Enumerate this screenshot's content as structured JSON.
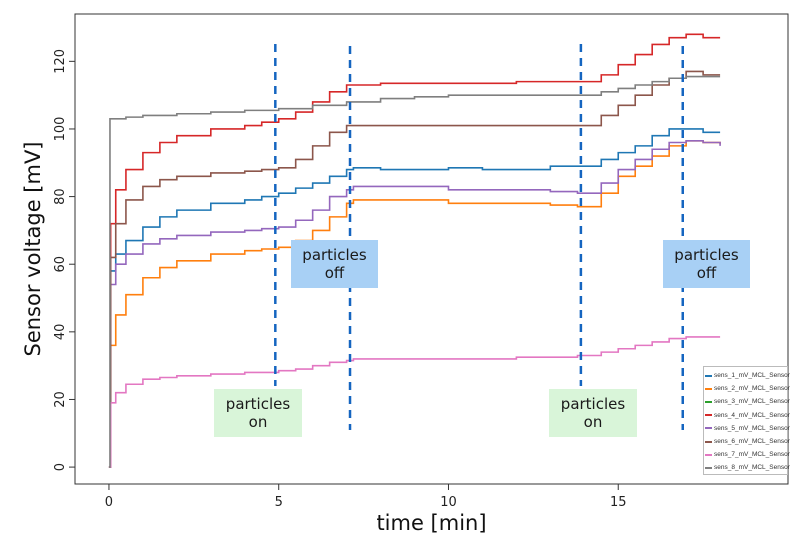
{
  "chart_data": {
    "type": "line",
    "xlabel": "time [min]",
    "ylabel": "Sensor voltage [mV]",
    "xlim": [
      -1,
      20
    ],
    "ylim": [
      -5,
      134
    ],
    "xticks": [
      0,
      5,
      10,
      15
    ],
    "yticks": [
      0,
      20,
      40,
      60,
      80,
      100,
      120
    ],
    "grid": false,
    "legend_position": "bottom-right",
    "series": [
      {
        "name": "sens_1_mV_MCL_Sensor",
        "color": "#1f77b4",
        "x": [
          0,
          0.05,
          0.2,
          0.5,
          1,
          1.5,
          2,
          3,
          4,
          4.5,
          5,
          5.5,
          6,
          6.5,
          7,
          7.2,
          8,
          9,
          10,
          11,
          12,
          13,
          13.8,
          14.5,
          15,
          15.5,
          16,
          16.5,
          17,
          17.5,
          18
        ],
        "y": [
          0,
          58,
          63,
          67,
          71,
          74,
          76,
          78,
          79,
          80,
          81,
          82.5,
          84,
          86,
          88,
          88.5,
          88,
          88,
          88.5,
          88,
          88,
          89,
          89,
          91,
          93,
          95,
          98,
          100,
          100,
          99,
          99
        ]
      },
      {
        "name": "sens_2_mV_MCL_Sensor",
        "color": "#ff7f0e",
        "x": [
          0,
          0.05,
          0.2,
          0.5,
          1,
          1.5,
          2,
          3,
          4,
          4.5,
          5,
          5.5,
          6,
          6.5,
          7,
          7.2,
          8,
          9,
          10,
          11,
          12,
          13,
          13.8,
          14.5,
          15,
          15.5,
          16,
          16.5,
          17,
          17.5,
          18
        ],
        "y": [
          0,
          36,
          45,
          51,
          56,
          59,
          61,
          63,
          64,
          64.5,
          65,
          67,
          70,
          74,
          78,
          79,
          79,
          79,
          78,
          78,
          78,
          77.5,
          77,
          81,
          86,
          89,
          92,
          95,
          96.5,
          96,
          95.5
        ]
      },
      {
        "name": "sens_3_mV_MCL_Sensor",
        "color": "#2ca02c",
        "x": [],
        "y": []
      },
      {
        "name": "sens_4_mV_MCL_Sensor",
        "color": "#d62728",
        "x": [
          0,
          0.05,
          0.2,
          0.5,
          1,
          1.5,
          2,
          3,
          4,
          4.5,
          5,
          5.5,
          6,
          6.5,
          7,
          7.2,
          8,
          9,
          10,
          11,
          12,
          13,
          13.8,
          14.5,
          15,
          15.5,
          16,
          16.5,
          17,
          17.5,
          18
        ],
        "y": [
          0,
          72,
          82,
          88,
          93,
          96,
          98,
          100,
          101,
          102,
          103,
          105,
          108,
          111,
          113,
          113,
          113.5,
          113.5,
          113.5,
          113.5,
          114,
          114,
          114,
          116,
          119,
          122,
          125,
          127,
          128,
          127,
          127
        ]
      },
      {
        "name": "sens_5_mV_MCL_Sensor",
        "color": "#9467bd",
        "x": [
          0,
          0.05,
          0.2,
          0.5,
          1,
          1.5,
          2,
          3,
          4,
          4.5,
          5,
          5.5,
          6,
          6.5,
          7,
          7.2,
          8,
          9,
          10,
          11,
          12,
          13,
          13.8,
          14.5,
          15,
          15.5,
          16,
          16.5,
          17,
          17.5,
          18
        ],
        "y": [
          0,
          54,
          60,
          63,
          66,
          67.5,
          68.5,
          69.5,
          70,
          70.5,
          71,
          73,
          76,
          80,
          82,
          83,
          83,
          83,
          82,
          82,
          82,
          81.5,
          81,
          84,
          88,
          91,
          94,
          96,
          96.5,
          96,
          95
        ]
      },
      {
        "name": "sens_6_mV_MCL_Sensor",
        "color": "#8c564b",
        "x": [
          0,
          0.05,
          0.2,
          0.5,
          1,
          1.5,
          2,
          3,
          4,
          4.5,
          5,
          5.5,
          6,
          6.5,
          7,
          7.2,
          8,
          9,
          10,
          11,
          12,
          13,
          13.8,
          14.5,
          15,
          15.5,
          16,
          16.5,
          17,
          17.5,
          18
        ],
        "y": [
          0,
          62,
          72,
          79,
          83,
          85,
          86,
          87,
          87.5,
          88,
          88.5,
          91,
          95,
          99,
          101,
          101,
          101,
          101,
          101,
          101,
          101,
          101,
          101,
          104,
          107,
          110,
          113,
          115,
          117,
          116,
          116
        ]
      },
      {
        "name": "sens_7_mV_MCL_Sensor",
        "color": "#e377c2",
        "x": [
          0,
          0.05,
          0.2,
          0.5,
          1,
          1.5,
          2,
          3,
          4,
          4.5,
          5,
          5.5,
          6,
          6.5,
          7,
          7.2,
          8,
          9,
          10,
          11,
          12,
          13,
          13.8,
          14.5,
          15,
          15.5,
          16,
          16.5,
          17,
          17.5,
          18
        ],
        "y": [
          0,
          19,
          22,
          24.5,
          26,
          26.5,
          27,
          27.5,
          28,
          28,
          28.5,
          29,
          30,
          31,
          31.5,
          32,
          32,
          32,
          32,
          32,
          32.5,
          32.5,
          33,
          34,
          35,
          36,
          37,
          38,
          38.5,
          38.5,
          38.5
        ]
      },
      {
        "name": "sens_8_mV_MCL_Sensor",
        "color": "#7f7f7f",
        "x": [
          0,
          0.03,
          0.1,
          0.5,
          1,
          2,
          3,
          4,
          5,
          6,
          7,
          8,
          9,
          10,
          11,
          12,
          13,
          13.8,
          14.5,
          15,
          15.5,
          16,
          16.5,
          17,
          17.5,
          18
        ],
        "y": [
          0,
          103,
          103,
          103.5,
          104,
          104.5,
          105,
          105.5,
          106,
          107,
          108,
          109,
          109.5,
          110,
          110,
          110,
          110,
          110,
          111,
          112,
          113,
          114,
          115,
          115.5,
          115.5,
          115.5
        ]
      }
    ],
    "vlines": [
      4.9,
      7.1,
      13.9,
      16.9
    ],
    "annotations": [
      {
        "text": "particles\non",
        "bg": "#d9f5d9"
      },
      {
        "text": "particles\noff",
        "bg": "#a8d0f5"
      },
      {
        "text": "particles\non",
        "bg": "#d9f5d9"
      },
      {
        "text": "particles\noff",
        "bg": "#a8d0f5"
      }
    ],
    "vline_color": "#1565c0"
  }
}
